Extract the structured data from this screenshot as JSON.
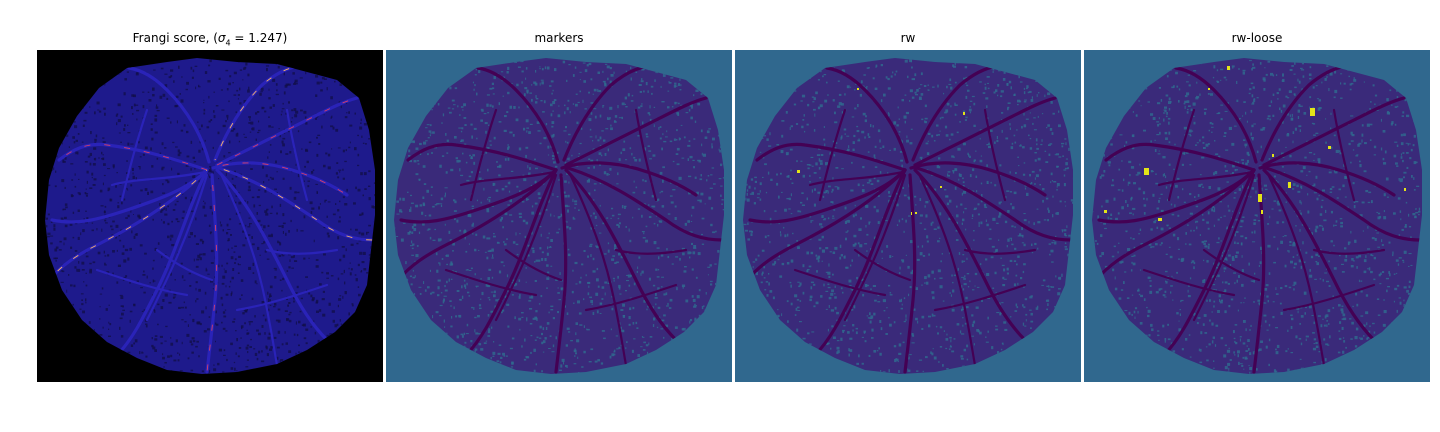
{
  "figure": {
    "panels": [
      {
        "id": "frangi",
        "title_prefix": "Frangi score, (",
        "title_sigma": "σ",
        "title_subscript": "4",
        "title_suffix": " = 1.247)",
        "colormap": "magma",
        "background_color": "#000000",
        "tissue_color": "#1e1a8c",
        "vessel_color": "#2a23b8",
        "highlight_colors": [
          "#d4406a",
          "#f7b26a"
        ]
      },
      {
        "id": "markers",
        "title": "markers",
        "colormap": "viridis",
        "background_color": "#30688e",
        "tissue_color": "#3a2a7a",
        "vessel_color": "#440154"
      },
      {
        "id": "rw",
        "title": "rw",
        "colormap": "viridis",
        "background_color": "#30688e",
        "tissue_color": "#3a2a7a",
        "vessel_color": "#440154",
        "spot_color": "#e3e418"
      },
      {
        "id": "rw-loose",
        "title": "rw-loose",
        "colormap": "viridis",
        "background_color": "#30688e",
        "tissue_color": "#3a2a7a",
        "vessel_color": "#440154",
        "spot_color": "#e3e418"
      }
    ]
  }
}
